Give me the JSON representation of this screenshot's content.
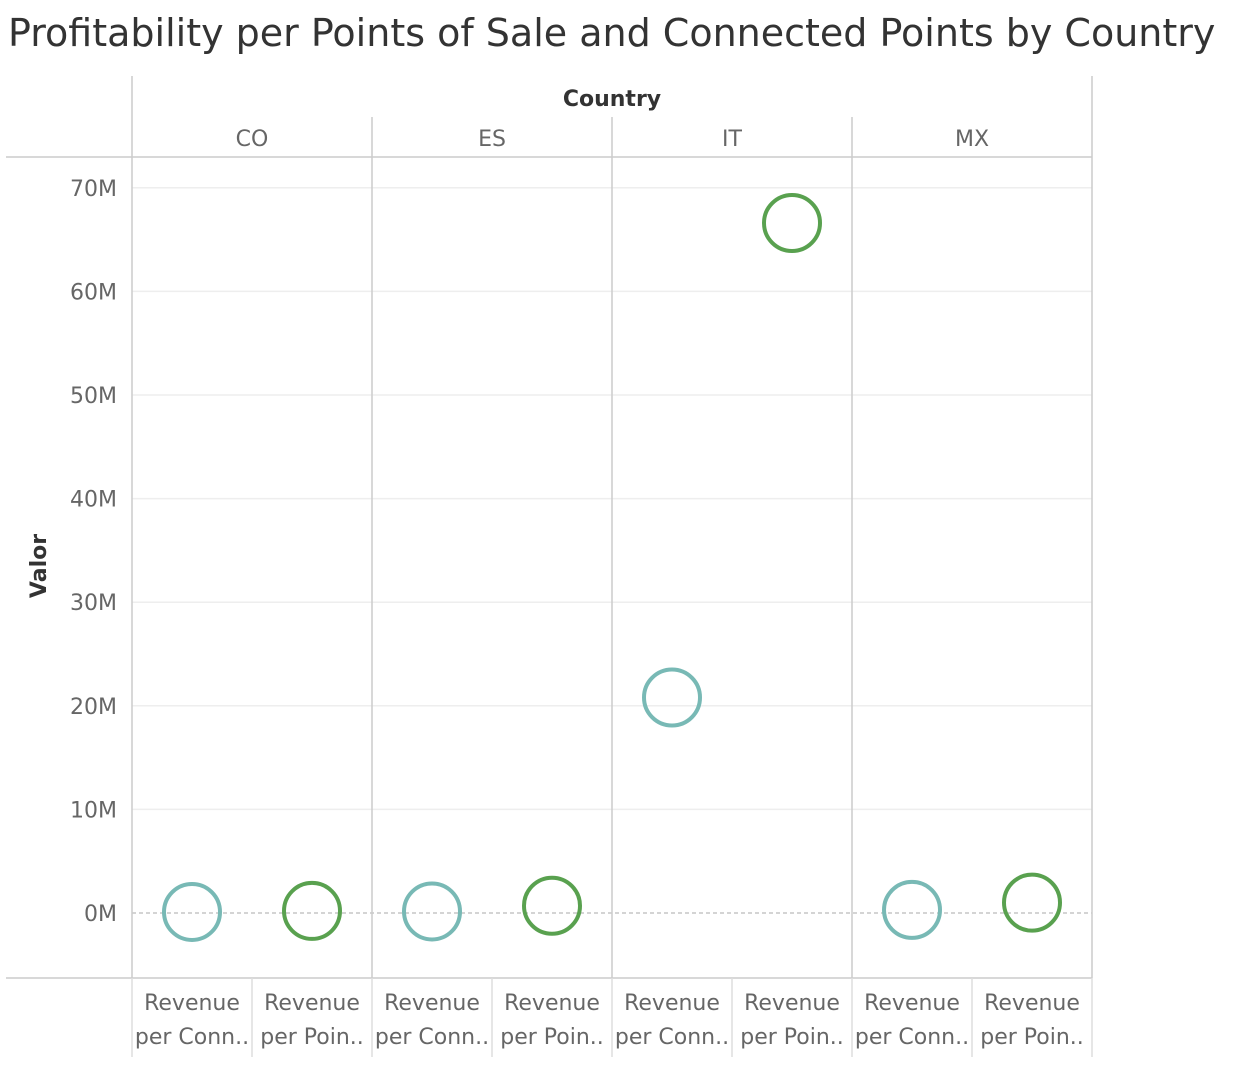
{
  "chart_data": {
    "type": "scatter",
    "title": "Profitability per Points of Sale and Connected Points by Country",
    "column_header": "Country",
    "ylabel": "Valor",
    "ylim": [
      -6300000,
      72000000
    ],
    "yticks": [
      0,
      10000000,
      20000000,
      30000000,
      40000000,
      50000000,
      60000000,
      70000000
    ],
    "ytick_labels": [
      "0M",
      "10M",
      "20M",
      "30M",
      "40M",
      "50M",
      "60M",
      "70M"
    ],
    "grid": true,
    "countries": [
      "CO",
      "ES",
      "IT",
      "MX"
    ],
    "measure_labels": [
      [
        "Revenue",
        "per Conn.."
      ],
      [
        "Revenue",
        "per Poin.."
      ]
    ],
    "series": [
      {
        "color": "#78b9b5",
        "values": [
          100000,
          150000,
          20800000,
          300000
        ]
      },
      {
        "color": "#59a14f",
        "values": [
          200000,
          700000,
          66600000,
          1000000
        ]
      }
    ]
  }
}
